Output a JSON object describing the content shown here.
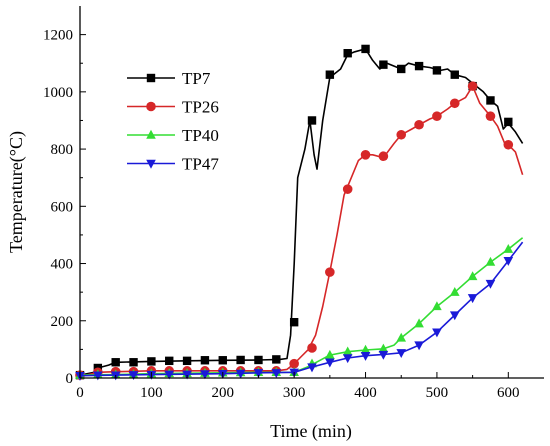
{
  "chart_data": {
    "type": "line",
    "xlabel": "Time (min)",
    "ylabel": "Temperature(°C)",
    "xlim": [
      0,
      650
    ],
    "ylim": [
      0,
      1300
    ],
    "x_ticks": [
      0,
      100,
      200,
      300,
      400,
      500,
      600
    ],
    "y_ticks": [
      0,
      200,
      400,
      600,
      800,
      1000,
      1200
    ],
    "grid": false,
    "legend_position": "top-left",
    "series": [
      {
        "name": "TP7",
        "color": "#000000",
        "marker": "square",
        "line": [
          [
            0,
            10
          ],
          [
            20,
            20
          ],
          [
            25,
            35
          ],
          [
            40,
            45
          ],
          [
            50,
            55
          ],
          [
            100,
            58
          ],
          [
            150,
            60
          ],
          [
            200,
            62
          ],
          [
            250,
            63
          ],
          [
            280,
            65
          ],
          [
            290,
            68
          ],
          [
            295,
            150
          ],
          [
            300,
            400
          ],
          [
            305,
            700
          ],
          [
            315,
            800
          ],
          [
            322,
            900
          ],
          [
            328,
            780
          ],
          [
            332,
            730
          ],
          [
            340,
            900
          ],
          [
            350,
            1050
          ],
          [
            365,
            1080
          ],
          [
            375,
            1130
          ],
          [
            385,
            1140
          ],
          [
            400,
            1150
          ],
          [
            410,
            1110
          ],
          [
            420,
            1080
          ],
          [
            430,
            1100
          ],
          [
            440,
            1090
          ],
          [
            450,
            1080
          ],
          [
            460,
            1100
          ],
          [
            475,
            1090
          ],
          [
            490,
            1085
          ],
          [
            505,
            1075
          ],
          [
            515,
            1080
          ],
          [
            525,
            1060
          ],
          [
            540,
            1050
          ],
          [
            555,
            1020
          ],
          [
            565,
            1000
          ],
          [
            575,
            970
          ],
          [
            585,
            950
          ],
          [
            593,
            870
          ],
          [
            600,
            890
          ],
          [
            610,
            860
          ],
          [
            620,
            820
          ]
        ],
        "markers": [
          [
            0,
            10
          ],
          [
            25,
            35
          ],
          [
            50,
            55
          ],
          [
            75,
            55
          ],
          [
            100,
            58
          ],
          [
            125,
            60
          ],
          [
            150,
            60
          ],
          [
            175,
            62
          ],
          [
            200,
            62
          ],
          [
            225,
            63
          ],
          [
            250,
            63
          ],
          [
            275,
            65
          ],
          [
            300,
            195
          ],
          [
            325,
            900
          ],
          [
            350,
            1060
          ],
          [
            375,
            1135
          ],
          [
            400,
            1150
          ],
          [
            425,
            1095
          ],
          [
            450,
            1080
          ],
          [
            475,
            1090
          ],
          [
            500,
            1075
          ],
          [
            525,
            1060
          ],
          [
            550,
            1020
          ],
          [
            575,
            970
          ],
          [
            600,
            895
          ]
        ]
      },
      {
        "name": "TP26",
        "color": "#d62728",
        "marker": "circle",
        "line": [
          [
            0,
            5
          ],
          [
            25,
            20
          ],
          [
            50,
            22
          ],
          [
            100,
            25
          ],
          [
            150,
            25
          ],
          [
            200,
            25
          ],
          [
            250,
            25
          ],
          [
            275,
            25
          ],
          [
            290,
            30
          ],
          [
            300,
            50
          ],
          [
            310,
            75
          ],
          [
            320,
            100
          ],
          [
            330,
            150
          ],
          [
            340,
            250
          ],
          [
            350,
            370
          ],
          [
            360,
            500
          ],
          [
            370,
            640
          ],
          [
            380,
            700
          ],
          [
            390,
            760
          ],
          [
            400,
            780
          ],
          [
            410,
            780
          ],
          [
            425,
            770
          ],
          [
            440,
            820
          ],
          [
            450,
            850
          ],
          [
            465,
            870
          ],
          [
            475,
            885
          ],
          [
            490,
            905
          ],
          [
            500,
            915
          ],
          [
            515,
            940
          ],
          [
            525,
            960
          ],
          [
            540,
            980
          ],
          [
            550,
            1020
          ],
          [
            560,
            960
          ],
          [
            575,
            915
          ],
          [
            585,
            880
          ],
          [
            595,
            820
          ],
          [
            600,
            815
          ],
          [
            610,
            790
          ],
          [
            620,
            710
          ]
        ],
        "markers": [
          [
            0,
            10
          ],
          [
            25,
            20
          ],
          [
            50,
            22
          ],
          [
            75,
            22
          ],
          [
            100,
            25
          ],
          [
            125,
            25
          ],
          [
            150,
            25
          ],
          [
            175,
            25
          ],
          [
            200,
            25
          ],
          [
            225,
            25
          ],
          [
            250,
            25
          ],
          [
            275,
            25
          ],
          [
            300,
            50
          ],
          [
            325,
            105
          ],
          [
            350,
            370
          ],
          [
            375,
            660
          ],
          [
            400,
            780
          ],
          [
            425,
            775
          ],
          [
            450,
            850
          ],
          [
            475,
            885
          ],
          [
            500,
            915
          ],
          [
            525,
            960
          ],
          [
            550,
            1020
          ],
          [
            575,
            915
          ],
          [
            600,
            815
          ]
        ]
      },
      {
        "name": "TP40",
        "color": "#33dd33",
        "marker": "triangle-up",
        "line": [
          [
            0,
            10
          ],
          [
            50,
            12
          ],
          [
            100,
            15
          ],
          [
            200,
            18
          ],
          [
            250,
            20
          ],
          [
            300,
            20
          ],
          [
            320,
            40
          ],
          [
            350,
            80
          ],
          [
            375,
            92
          ],
          [
            400,
            98
          ],
          [
            425,
            102
          ],
          [
            440,
            115
          ],
          [
            450,
            140
          ],
          [
            475,
            190
          ],
          [
            500,
            250
          ],
          [
            525,
            300
          ],
          [
            550,
            355
          ],
          [
            575,
            405
          ],
          [
            600,
            450
          ],
          [
            620,
            490
          ]
        ],
        "markers": [
          [
            0,
            10
          ],
          [
            25,
            12
          ],
          [
            50,
            12
          ],
          [
            75,
            13
          ],
          [
            100,
            15
          ],
          [
            125,
            16
          ],
          [
            150,
            16
          ],
          [
            175,
            17
          ],
          [
            200,
            18
          ],
          [
            225,
            19
          ],
          [
            250,
            20
          ],
          [
            275,
            20
          ],
          [
            300,
            20
          ],
          [
            325,
            50
          ],
          [
            350,
            80
          ],
          [
            375,
            92
          ],
          [
            400,
            98
          ],
          [
            425,
            102
          ],
          [
            450,
            140
          ],
          [
            475,
            190
          ],
          [
            500,
            250
          ],
          [
            525,
            300
          ],
          [
            550,
            355
          ],
          [
            575,
            405
          ],
          [
            600,
            450
          ]
        ]
      },
      {
        "name": "TP47",
        "color": "#1a1ad8",
        "marker": "triangle-down",
        "line": [
          [
            0,
            8
          ],
          [
            50,
            10
          ],
          [
            100,
            12
          ],
          [
            200,
            15
          ],
          [
            250,
            18
          ],
          [
            300,
            20
          ],
          [
            320,
            35
          ],
          [
            350,
            55
          ],
          [
            375,
            70
          ],
          [
            400,
            78
          ],
          [
            425,
            82
          ],
          [
            450,
            88
          ],
          [
            475,
            115
          ],
          [
            500,
            160
          ],
          [
            525,
            220
          ],
          [
            550,
            280
          ],
          [
            575,
            330
          ],
          [
            600,
            410
          ],
          [
            620,
            475
          ]
        ],
        "markers": [
          [
            0,
            8
          ],
          [
            25,
            10
          ],
          [
            50,
            10
          ],
          [
            75,
            11
          ],
          [
            100,
            12
          ],
          [
            125,
            13
          ],
          [
            150,
            13
          ],
          [
            175,
            14
          ],
          [
            200,
            15
          ],
          [
            225,
            16
          ],
          [
            250,
            18
          ],
          [
            275,
            18
          ],
          [
            300,
            20
          ],
          [
            325,
            38
          ],
          [
            350,
            55
          ],
          [
            375,
            70
          ],
          [
            400,
            78
          ],
          [
            425,
            82
          ],
          [
            450,
            88
          ],
          [
            475,
            115
          ],
          [
            500,
            160
          ],
          [
            525,
            220
          ],
          [
            550,
            280
          ],
          [
            575,
            330
          ],
          [
            600,
            410
          ]
        ]
      }
    ]
  }
}
